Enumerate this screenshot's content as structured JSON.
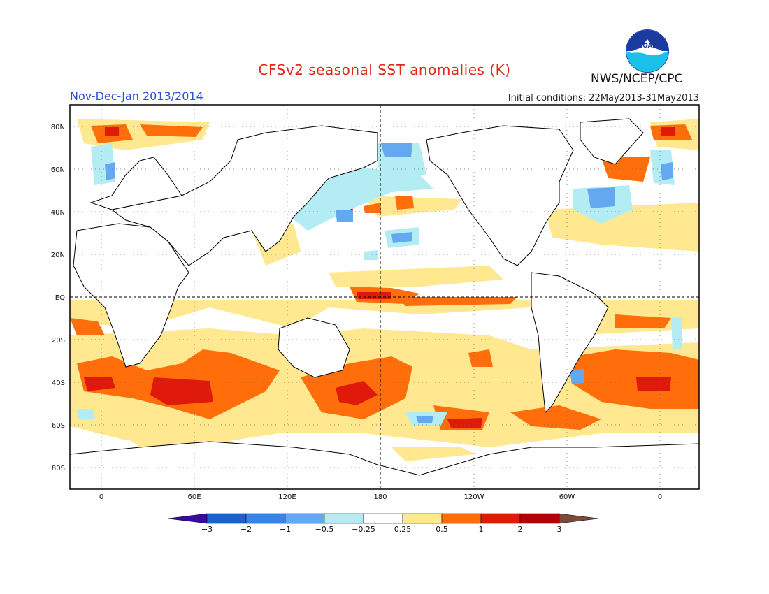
{
  "header": {
    "title": "CFSv2 seasonal SST anomalies (K)",
    "period": "Nov-Dec-Jan 2013/2014",
    "initial_conditions": "Initial conditions: 22May2013-31May2013",
    "agency": "NWS/NCEP/CPC",
    "logo_text": "NOAA"
  },
  "map": {
    "lat_labels": [
      "80N",
      "60N",
      "40N",
      "20N",
      "EQ",
      "20S",
      "40S",
      "60S",
      "80S"
    ],
    "lon_labels": [
      "0",
      "60E",
      "120E",
      "180",
      "120W",
      "60W",
      "0"
    ]
  },
  "colorbar": {
    "labels": [
      "-3",
      "-2",
      "-1",
      "-0.5",
      "-0.25",
      "0.25",
      "0.5",
      "1",
      "2",
      "3"
    ],
    "colors": [
      "#3a0aa0",
      "#1e5fc8",
      "#3c82e0",
      "#64a8f0",
      "#b4ecf4",
      "#ffffff",
      "#ffe890",
      "#ff6e0a",
      "#e01a0a",
      "#b40000",
      "#7a4a3a"
    ]
  }
}
